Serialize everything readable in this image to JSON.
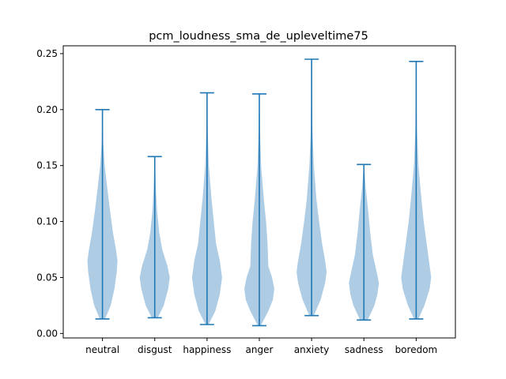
{
  "chart_data": {
    "type": "violin",
    "title": "pcm_loudness_sma_de_upleveltime75",
    "xlabel": "",
    "ylabel": "",
    "ylim": [
      -0.004,
      0.257
    ],
    "yticks": [
      "0.00",
      "0.05",
      "0.10",
      "0.15",
      "0.20",
      "0.25"
    ],
    "categories": [
      "neutral",
      "disgust",
      "happiness",
      "anger",
      "anxiety",
      "sadness",
      "boredom"
    ],
    "colors": {
      "body": "#aecde5",
      "line": "#1f77b4"
    },
    "violins": [
      {
        "category": "neutral",
        "min": 0.013,
        "max": 0.2,
        "profile": [
          [
            0.013,
            0.18
          ],
          [
            0.025,
            0.55
          ],
          [
            0.04,
            0.8
          ],
          [
            0.055,
            0.95
          ],
          [
            0.065,
            1.0
          ],
          [
            0.075,
            0.9
          ],
          [
            0.09,
            0.7
          ],
          [
            0.11,
            0.5
          ],
          [
            0.13,
            0.32
          ],
          [
            0.15,
            0.15
          ],
          [
            0.17,
            0.05
          ],
          [
            0.2,
            0.01
          ]
        ]
      },
      {
        "category": "disgust",
        "min": 0.014,
        "max": 0.158,
        "profile": [
          [
            0.014,
            0.2
          ],
          [
            0.025,
            0.6
          ],
          [
            0.04,
            0.9
          ],
          [
            0.05,
            1.0
          ],
          [
            0.06,
            0.85
          ],
          [
            0.075,
            0.5
          ],
          [
            0.09,
            0.3
          ],
          [
            0.11,
            0.15
          ],
          [
            0.13,
            0.07
          ],
          [
            0.158,
            0.01
          ]
        ]
      },
      {
        "category": "happiness",
        "min": 0.008,
        "max": 0.215,
        "profile": [
          [
            0.008,
            0.1
          ],
          [
            0.02,
            0.55
          ],
          [
            0.035,
            0.85
          ],
          [
            0.05,
            1.0
          ],
          [
            0.065,
            0.85
          ],
          [
            0.08,
            0.6
          ],
          [
            0.1,
            0.45
          ],
          [
            0.12,
            0.3
          ],
          [
            0.15,
            0.12
          ],
          [
            0.18,
            0.05
          ],
          [
            0.215,
            0.01
          ]
        ]
      },
      {
        "category": "anger",
        "min": 0.007,
        "max": 0.214,
        "profile": [
          [
            0.007,
            0.1
          ],
          [
            0.02,
            0.6
          ],
          [
            0.03,
            0.9
          ],
          [
            0.04,
            1.0
          ],
          [
            0.05,
            0.85
          ],
          [
            0.06,
            0.6
          ],
          [
            0.08,
            0.55
          ],
          [
            0.1,
            0.45
          ],
          [
            0.12,
            0.3
          ],
          [
            0.15,
            0.12
          ],
          [
            0.18,
            0.05
          ],
          [
            0.214,
            0.01
          ]
        ]
      },
      {
        "category": "anxiety",
        "min": 0.016,
        "max": 0.245,
        "profile": [
          [
            0.016,
            0.15
          ],
          [
            0.03,
            0.6
          ],
          [
            0.045,
            0.9
          ],
          [
            0.055,
            1.0
          ],
          [
            0.065,
            0.9
          ],
          [
            0.08,
            0.7
          ],
          [
            0.1,
            0.5
          ],
          [
            0.12,
            0.32
          ],
          [
            0.15,
            0.15
          ],
          [
            0.18,
            0.06
          ],
          [
            0.21,
            0.03
          ],
          [
            0.245,
            0.01
          ]
        ]
      },
      {
        "category": "sadness",
        "min": 0.012,
        "max": 0.151,
        "profile": [
          [
            0.012,
            0.25
          ],
          [
            0.025,
            0.7
          ],
          [
            0.035,
            0.9
          ],
          [
            0.045,
            1.0
          ],
          [
            0.055,
            0.85
          ],
          [
            0.07,
            0.6
          ],
          [
            0.09,
            0.42
          ],
          [
            0.11,
            0.28
          ],
          [
            0.13,
            0.12
          ],
          [
            0.151,
            0.01
          ]
        ]
      },
      {
        "category": "boredom",
        "min": 0.013,
        "max": 0.243,
        "profile": [
          [
            0.013,
            0.15
          ],
          [
            0.025,
            0.55
          ],
          [
            0.04,
            0.9
          ],
          [
            0.05,
            1.0
          ],
          [
            0.06,
            0.9
          ],
          [
            0.08,
            0.7
          ],
          [
            0.1,
            0.5
          ],
          [
            0.12,
            0.35
          ],
          [
            0.15,
            0.15
          ],
          [
            0.18,
            0.06
          ],
          [
            0.21,
            0.02
          ],
          [
            0.243,
            0.01
          ]
        ]
      }
    ]
  }
}
